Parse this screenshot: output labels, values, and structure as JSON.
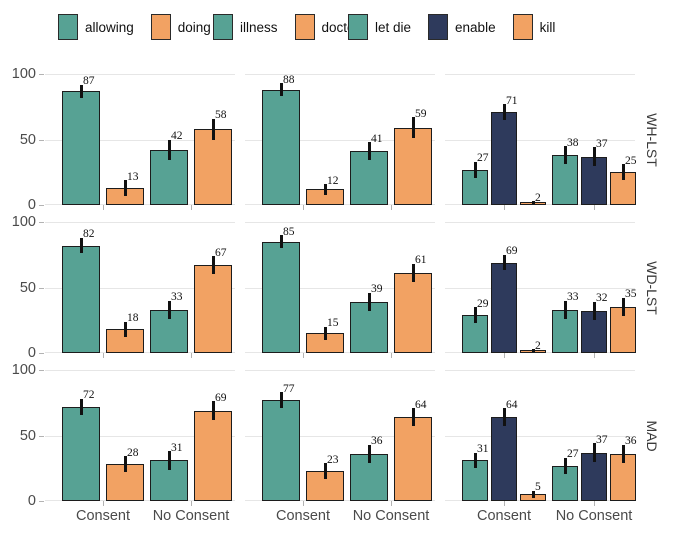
{
  "chart_data": {
    "type": "bar",
    "title": "",
    "xlabel": "",
    "ylabel": "",
    "ylim": [
      0,
      100
    ],
    "y_ticks": [
      0,
      50,
      100
    ],
    "grid": "horizontal",
    "legend_position": "top",
    "x_categories": [
      "Consent",
      "No Consent"
    ],
    "colors": {
      "teal": "#57a294",
      "orange": "#f2a263",
      "navy": "#2e3a5c",
      "bar_border": "#1c1c1c",
      "gridline": "#e6e6e6",
      "axis_text": "#4a4a4a",
      "value_text": "#111111",
      "strip_text": "#3a3a3a"
    },
    "facet_cols": [
      {
        "series": [
          {
            "name": "allowing",
            "color": "#57a294"
          },
          {
            "name": "doing",
            "color": "#f2a263"
          }
        ]
      },
      {
        "series": [
          {
            "name": "illness",
            "color": "#57a294"
          },
          {
            "name": "doctor",
            "color": "#f2a263"
          }
        ]
      },
      {
        "series": [
          {
            "name": "let die",
            "color": "#57a294"
          },
          {
            "name": "enable",
            "color": "#2e3a5c"
          },
          {
            "name": "kill",
            "color": "#f2a263"
          }
        ]
      }
    ],
    "facet_rows": [
      {
        "label": "WH-LST",
        "panels": [
          [
            {
              "category": "Consent",
              "values": [
                87,
                13
              ],
              "errors": [
                5,
                6
              ]
            },
            {
              "category": "No Consent",
              "values": [
                42,
                58
              ],
              "errors": [
                8,
                8
              ]
            }
          ],
          [
            {
              "category": "Consent",
              "values": [
                88,
                12
              ],
              "errors": [
                5,
                4
              ]
            },
            {
              "category": "No Consent",
              "values": [
                41,
                59
              ],
              "errors": [
                7,
                8
              ]
            }
          ],
          [
            {
              "category": "Consent",
              "values": [
                27,
                71,
                2
              ],
              "errors": [
                6,
                6,
                1
              ]
            },
            {
              "category": "No Consent",
              "values": [
                38,
                37,
                25
              ],
              "errors": [
                7,
                7,
                6
              ]
            }
          ]
        ]
      },
      {
        "label": "WD-LST",
        "panels": [
          [
            {
              "category": "Consent",
              "values": [
                82,
                18
              ],
              "errors": [
                6,
                6
              ]
            },
            {
              "category": "No Consent",
              "values": [
                33,
                67
              ],
              "errors": [
                7,
                7
              ]
            }
          ],
          [
            {
              "category": "Consent",
              "values": [
                85,
                15
              ],
              "errors": [
                5,
                5
              ]
            },
            {
              "category": "No Consent",
              "values": [
                39,
                61
              ],
              "errors": [
                7,
                7
              ]
            }
          ],
          [
            {
              "category": "Consent",
              "values": [
                29,
                69,
                2
              ],
              "errors": [
                6,
                6,
                1
              ]
            },
            {
              "category": "No Consent",
              "values": [
                33,
                32,
                35
              ],
              "errors": [
                7,
                7,
                7
              ]
            }
          ]
        ]
      },
      {
        "label": "MAD",
        "panels": [
          [
            {
              "category": "Consent",
              "values": [
                72,
                28
              ],
              "errors": [
                6,
                6
              ]
            },
            {
              "category": "No Consent",
              "values": [
                31,
                69
              ],
              "errors": [
                7,
                7
              ]
            }
          ],
          [
            {
              "category": "Consent",
              "values": [
                77,
                23
              ],
              "errors": [
                6,
                6
              ]
            },
            {
              "category": "No Consent",
              "values": [
                36,
                64
              ],
              "errors": [
                7,
                7
              ]
            }
          ],
          [
            {
              "category": "Consent",
              "values": [
                31,
                64,
                5
              ],
              "errors": [
                6,
                7,
                3
              ]
            },
            {
              "category": "No Consent",
              "values": [
                27,
                37,
                36
              ],
              "errors": [
                6,
                7,
                7
              ]
            }
          ]
        ]
      }
    ]
  }
}
